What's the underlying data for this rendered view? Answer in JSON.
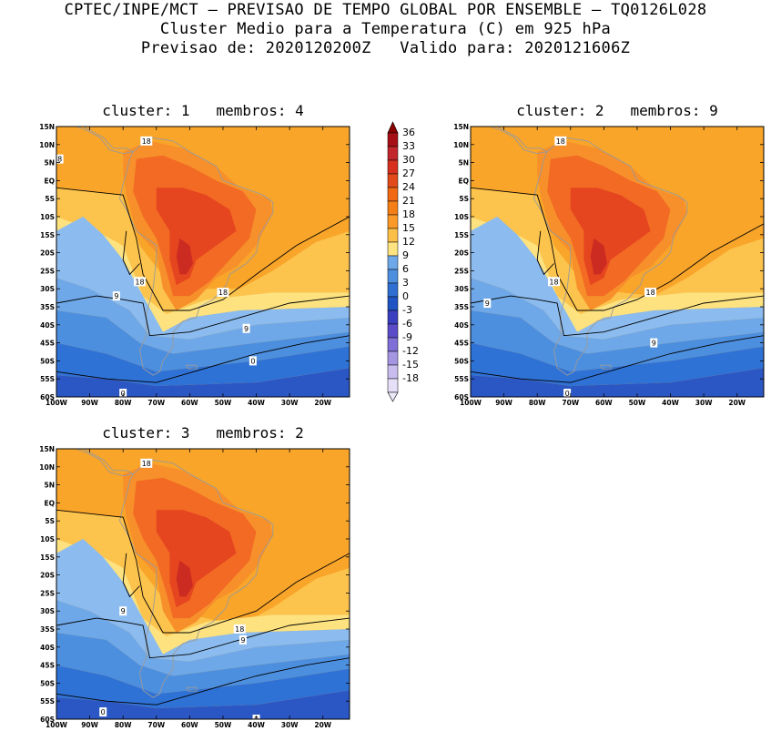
{
  "header": {
    "line1": "CPTEC/INPE/MCT – PREVISAO DE TEMPO GLOBAL POR ENSEMBLE – TQ0126L028",
    "line2": "Cluster Medio para a Temperatura (C) em 925 hPa",
    "line3": "Previsao de: 2020120200Z   Valido para: 2020121606Z"
  },
  "panels": [
    {
      "title": "cluster: 1   membros: 4",
      "labels": [
        "18",
        "8",
        "18",
        "18",
        "9",
        "9",
        "0",
        "0"
      ]
    },
    {
      "title": "cluster: 2   membros: 9",
      "labels": [
        "18",
        "18",
        "18",
        "9",
        "9",
        "0"
      ]
    },
    {
      "title": "cluster: 3   membros: 2",
      "labels": [
        "18",
        "18",
        "9",
        "9",
        "0",
        "0"
      ]
    }
  ],
  "axes": {
    "lat_ticks": [
      "15N",
      "10N",
      "5N",
      "EQ",
      "5S",
      "10S",
      "15S",
      "20S",
      "25S",
      "30S",
      "35S",
      "40S",
      "45S",
      "50S",
      "55S",
      "60S"
    ],
    "lon_ticks": [
      "100W",
      "90W",
      "80W",
      "70W",
      "60W",
      "50W",
      "40W",
      "30W",
      "20W"
    ]
  },
  "colorbar": {
    "labels": [
      "36",
      "33",
      "30",
      "27",
      "24",
      "21",
      "18",
      "15",
      "12",
      "9",
      "6",
      "3",
      "0",
      "-3",
      "-6",
      "-9",
      "-12",
      "-15",
      "-18"
    ],
    "colors": [
      "#a50f15",
      "#c1272d",
      "#d7301f",
      "#e34a1a",
      "#f16913",
      "#f57f17",
      "#fb9a29",
      "#fcbf48",
      "#fee381",
      "#6fa8e8",
      "#4d8fdf",
      "#2f6fd2",
      "#1f55c2",
      "#3a3fbf",
      "#5a4cc8",
      "#7f6fd6",
      "#a596e2",
      "#c8bdee",
      "#e5e0f7"
    ],
    "top_color": "#8b0000",
    "bottom_color": "#ece8f9"
  },
  "colors": {
    "c18_21": "#f9a52a",
    "c21_24": "#f7902a",
    "c24_27": "#f26a24",
    "c27_30": "#e6461f",
    "c30_33": "#cc2b21",
    "c15_18": "#fcc34d",
    "c12_15": "#fde27f",
    "c9_12": "#8cbcef",
    "c6_9": "#6fa8e8",
    "c3_6": "#4d8fdf",
    "c0_3": "#2f72d6",
    "cm3_0": "#2b57c4",
    "land_outline": "#9a9a9a",
    "contour": "#000000"
  }
}
